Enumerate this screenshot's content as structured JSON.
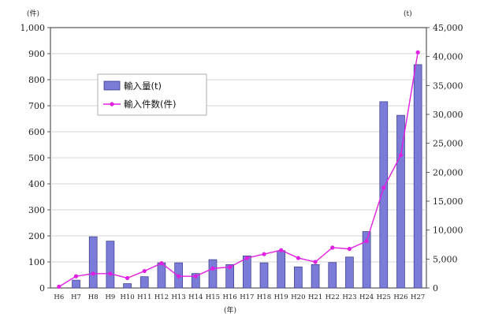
{
  "chart_data": {
    "type": "bar+line",
    "categories": [
      "H6",
      "H7",
      "H8",
      "H9",
      "H10",
      "H11",
      "H12",
      "H13",
      "H14",
      "H15",
      "H16",
      "H17",
      "H18",
      "H19",
      "H20",
      "H21",
      "H22",
      "H23",
      "H24",
      "H25",
      "H26",
      "H27"
    ],
    "x_tick_labels": [
      "H6",
      "H7",
      "H8",
      "H9",
      "H10",
      "H11",
      "H12",
      "H13",
      "H14",
      "H15",
      "H16",
      "H17",
      "H18",
      "H19",
      "H20",
      "H21",
      "H22",
      "H23",
      "H24",
      "H25",
      "H26",
      "H27"
    ],
    "series": [
      {
        "name": "輸入量(t)",
        "type": "bar",
        "axis": "right",
        "color": "#7b7bd8",
        "values": [
          0,
          1350,
          8850,
          8100,
          750,
          1950,
          4350,
          4350,
          2500,
          4900,
          4050,
          5550,
          4350,
          6450,
          3650,
          4050,
          4400,
          5350,
          9750,
          32200,
          29850,
          38600
        ]
      },
      {
        "name": "輸入件数(件)",
        "type": "line",
        "axis": "left",
        "color": "#e020e0",
        "values": [
          5,
          45,
          55,
          55,
          38,
          65,
          95,
          45,
          45,
          75,
          80,
          115,
          130,
          145,
          115,
          100,
          155,
          150,
          180,
          385,
          510,
          905
        ]
      }
    ],
    "y_left": {
      "unit_label": "(件)",
      "ticks": [
        "0",
        "100",
        "200",
        "300",
        "400",
        "500",
        "600",
        "700",
        "800",
        "900",
        "1,000"
      ],
      "ylim": [
        0,
        1000
      ]
    },
    "y_right": {
      "unit_label": "(t)",
      "ticks": [
        "0",
        "5,000",
        "10,000",
        "15,000",
        "20,000",
        "25,000",
        "30,000",
        "35,000",
        "40,000",
        "45,000"
      ],
      "ylim": [
        0,
        45000
      ]
    },
    "x_unit_label": "(年)",
    "grid": true,
    "legend": {
      "placement": "upper-left",
      "items": [
        "輸入量(t)",
        "輸入件数(件)"
      ]
    }
  }
}
